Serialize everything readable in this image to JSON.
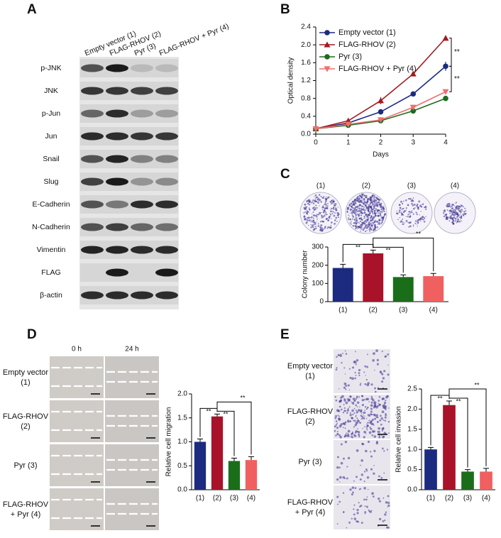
{
  "panel_labels": [
    "A",
    "B",
    "C",
    "D",
    "E"
  ],
  "blot": {
    "lanes": [
      "Empty vector (1)",
      "FLAG-RHOV (2)",
      "Pyr (3)",
      "FLAG-RHOV + Pyr (4)"
    ],
    "rows": [
      "p-JNK",
      "JNK",
      "p-Jun",
      "Jun",
      "Snail",
      "Slug",
      "E-Cadherin",
      "N-Cadherin",
      "Vimentin",
      "FLAG",
      "β-actin"
    ]
  },
  "dish_labels": [
    "(1)",
    "(2)",
    "(3)",
    "(4)"
  ],
  "migration": {
    "columns": [
      "0 h",
      "24 h"
    ],
    "rows": [
      [
        "Empty vector",
        "(1)"
      ],
      [
        "FLAG-RHOV",
        "(2)"
      ],
      [
        "Pyr (3)"
      ],
      [
        "FLAG-RHOV",
        "+ Pyr (4)"
      ]
    ]
  },
  "invasion": {
    "rows": [
      [
        "Empty vector",
        "(1)"
      ],
      [
        "FLAG-RHOV",
        "(2)"
      ],
      [
        "Pyr (3)"
      ],
      [
        "FLAG-RHOV",
        "+ Pyr (4)"
      ]
    ]
  },
  "chart_data": [
    {
      "type": "line",
      "x_label": "Days",
      "y_label": "Optical density",
      "x": [
        0,
        1,
        2,
        3,
        4
      ],
      "xlim": [
        0,
        4
      ],
      "xticks": [
        0,
        1,
        2,
        3,
        4
      ],
      "ylim": [
        0,
        2.4
      ],
      "yticks": [
        {
          "value": 0,
          "label": "0.0"
        },
        0.4,
        0.8,
        1.2,
        1.6,
        {
          "value": 2,
          "label": "2.0"
        },
        2.4
      ],
      "legend": "upper-left",
      "series": [
        {
          "name": "Empty vector (1)",
          "color": "#1c2a80",
          "marker": "circle",
          "values": [
            0.12,
            0.25,
            0.5,
            0.9,
            1.52
          ],
          "errors": [
            0.02,
            0.03,
            0.03,
            0.05,
            0.1
          ]
        },
        {
          "name": "FLAG-RHOV (2)",
          "color": "#a01c24",
          "marker": "triangle",
          "values": [
            0.12,
            0.3,
            0.75,
            1.35,
            2.15
          ],
          "errors": [
            0.02,
            0.05,
            0.08,
            0.05,
            0.06
          ]
        },
        {
          "name": "Pyr (3)",
          "color": "#1e6b1e",
          "marker": "circle",
          "values": [
            0.12,
            0.2,
            0.3,
            0.52,
            0.8
          ],
          "errors": [
            0.02,
            0.02,
            0.02,
            0.03,
            0.05
          ]
        },
        {
          "name": "FLAG-RHOV + Pyr (4)",
          "color": "#f06e6e",
          "marker": "triangle-down",
          "values": [
            0.12,
            0.22,
            0.32,
            0.6,
            0.95
          ],
          "errors": [
            0.02,
            0.02,
            0.03,
            0.04,
            0.05
          ]
        }
      ],
      "annotations": [
        "**",
        "**"
      ]
    },
    {
      "type": "bar",
      "y_label": "Colony number",
      "categories": [
        "(1)",
        "(2)",
        "(3)",
        "(4)"
      ],
      "values": [
        185,
        265,
        135,
        140
      ],
      "errors": [
        20,
        18,
        12,
        15
      ],
      "colors": [
        "#1c2a80",
        "#a8132a",
        "#1a6e1a",
        "#f06060"
      ],
      "ylim": [
        0,
        300
      ],
      "yticks": [
        0,
        100,
        200,
        300
      ],
      "annotations": [
        "**",
        "**",
        "**"
      ]
    },
    {
      "type": "bar",
      "y_label": "Relative cell migration",
      "categories": [
        "(1)",
        "(2)",
        "(3)",
        "(4)"
      ],
      "values": [
        1.0,
        1.53,
        0.6,
        0.62
      ],
      "errors": [
        0.06,
        0.05,
        0.06,
        0.07
      ],
      "colors": [
        "#1c2a80",
        "#a8132a",
        "#1a6e1a",
        "#f06060"
      ],
      "ylim": [
        0,
        2
      ],
      "yticks": [
        {
          "value": 0,
          "label": "0.0"
        },
        0.5,
        {
          "value": 1,
          "label": "1.0"
        },
        1.5,
        {
          "value": 2,
          "label": "2.0"
        }
      ],
      "annotations": [
        "**",
        "**",
        "**"
      ]
    },
    {
      "type": "bar",
      "y_label": "Relative cell invasion",
      "categories": [
        "(1)",
        "(2)",
        "(3)",
        "(4)"
      ],
      "values": [
        1.0,
        2.1,
        0.45,
        0.45
      ],
      "errors": [
        0.05,
        0.1,
        0.05,
        0.08
      ],
      "colors": [
        "#1c2a80",
        "#a8132a",
        "#1a6e1a",
        "#f06060"
      ],
      "ylim": [
        0,
        2.5
      ],
      "yticks": [
        {
          "value": 0,
          "label": "0.0"
        },
        0.5,
        {
          "value": 1,
          "label": "1.0"
        },
        1.5,
        {
          "value": 2,
          "label": "2.0"
        },
        2.5
      ],
      "annotations": [
        "**",
        "**",
        "**"
      ]
    }
  ]
}
